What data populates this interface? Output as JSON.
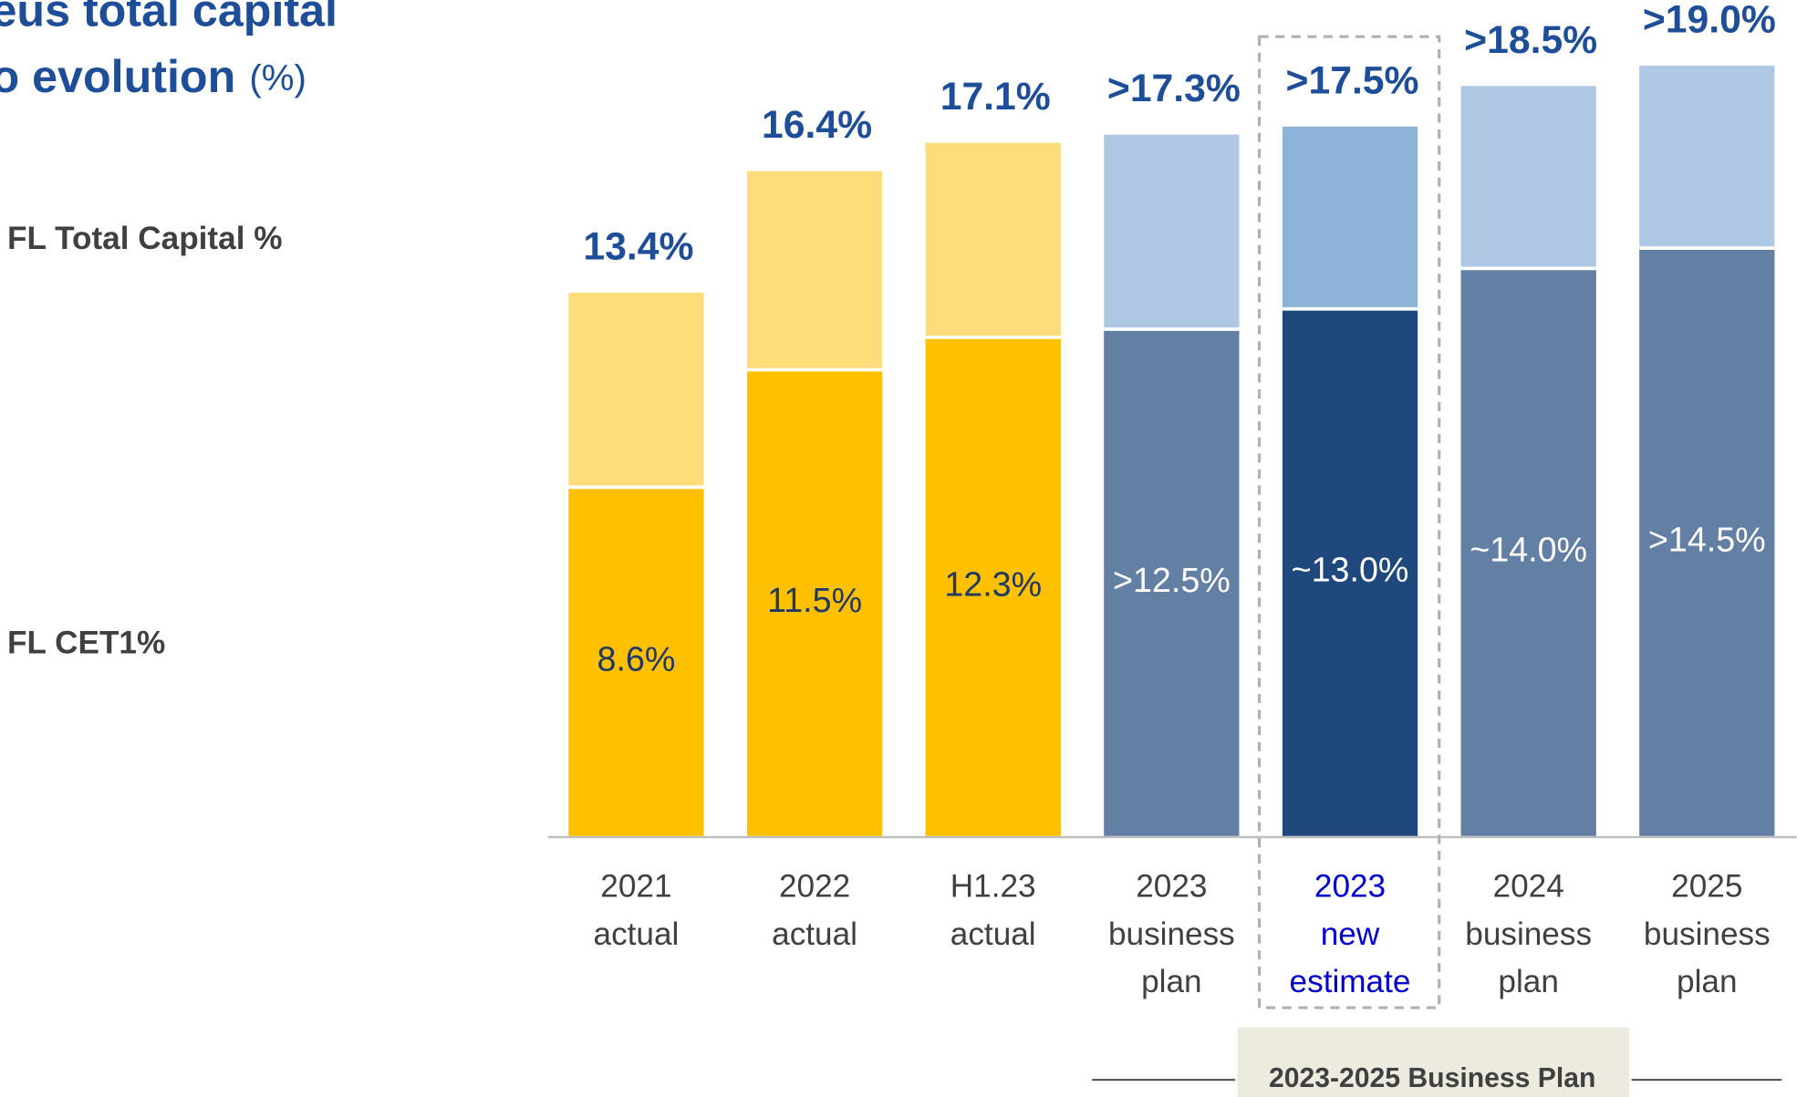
{
  "chart_data": {
    "type": "bar",
    "title": [
      "eus total capital",
      "o evolution"
    ],
    "title_unit": "(%)",
    "categories": [
      [
        "2021",
        "actual"
      ],
      [
        "2022",
        "actual"
      ],
      [
        "H1.23",
        "actual"
      ],
      [
        "2023",
        "business",
        "plan"
      ],
      [
        "2023",
        "new",
        "estimate"
      ],
      [
        "2024",
        "business",
        "plan"
      ],
      [
        "2025",
        "business",
        "plan"
      ]
    ],
    "highlight_category": 4,
    "ylim": [
      0,
      20
    ],
    "series": [
      {
        "name": "FL Total Capital %",
        "values": [
          13.4,
          16.4,
          17.1,
          17.3,
          17.5,
          18.5,
          19.0
        ],
        "value_labels": [
          "13.4%",
          "16.4%",
          "17.1%",
          ">17.3%",
          ">17.5%",
          ">18.5%",
          ">19.0%"
        ],
        "colors": [
          "#fddd7a",
          "#fddd7a",
          "#fddd7a",
          "#aec7e3",
          "#8db3d9",
          "#aec7e3",
          "#aec7e3"
        ],
        "label_color": "#1f4e99"
      },
      {
        "name": "FL CET1%",
        "values": [
          8.6,
          11.5,
          12.3,
          12.5,
          13.0,
          14.0,
          14.5
        ],
        "value_labels": [
          "8.6%",
          "11.5%",
          "12.3%",
          ">12.5%",
          "~13.0%",
          "~14.0%",
          ">14.5%"
        ],
        "colors": [
          "#ffc000",
          "#ffc000",
          "#ffc000",
          "#637fa3",
          "#1f497d",
          "#637fa3",
          "#637fa3"
        ],
        "label_colors": [
          "#1f3864",
          "#1f3864",
          "#1f3864",
          "#ffffff",
          "#ffffff",
          "#ffffff",
          "#ffffff"
        ]
      }
    ],
    "annotation": "2023-2025 Business Plan"
  }
}
